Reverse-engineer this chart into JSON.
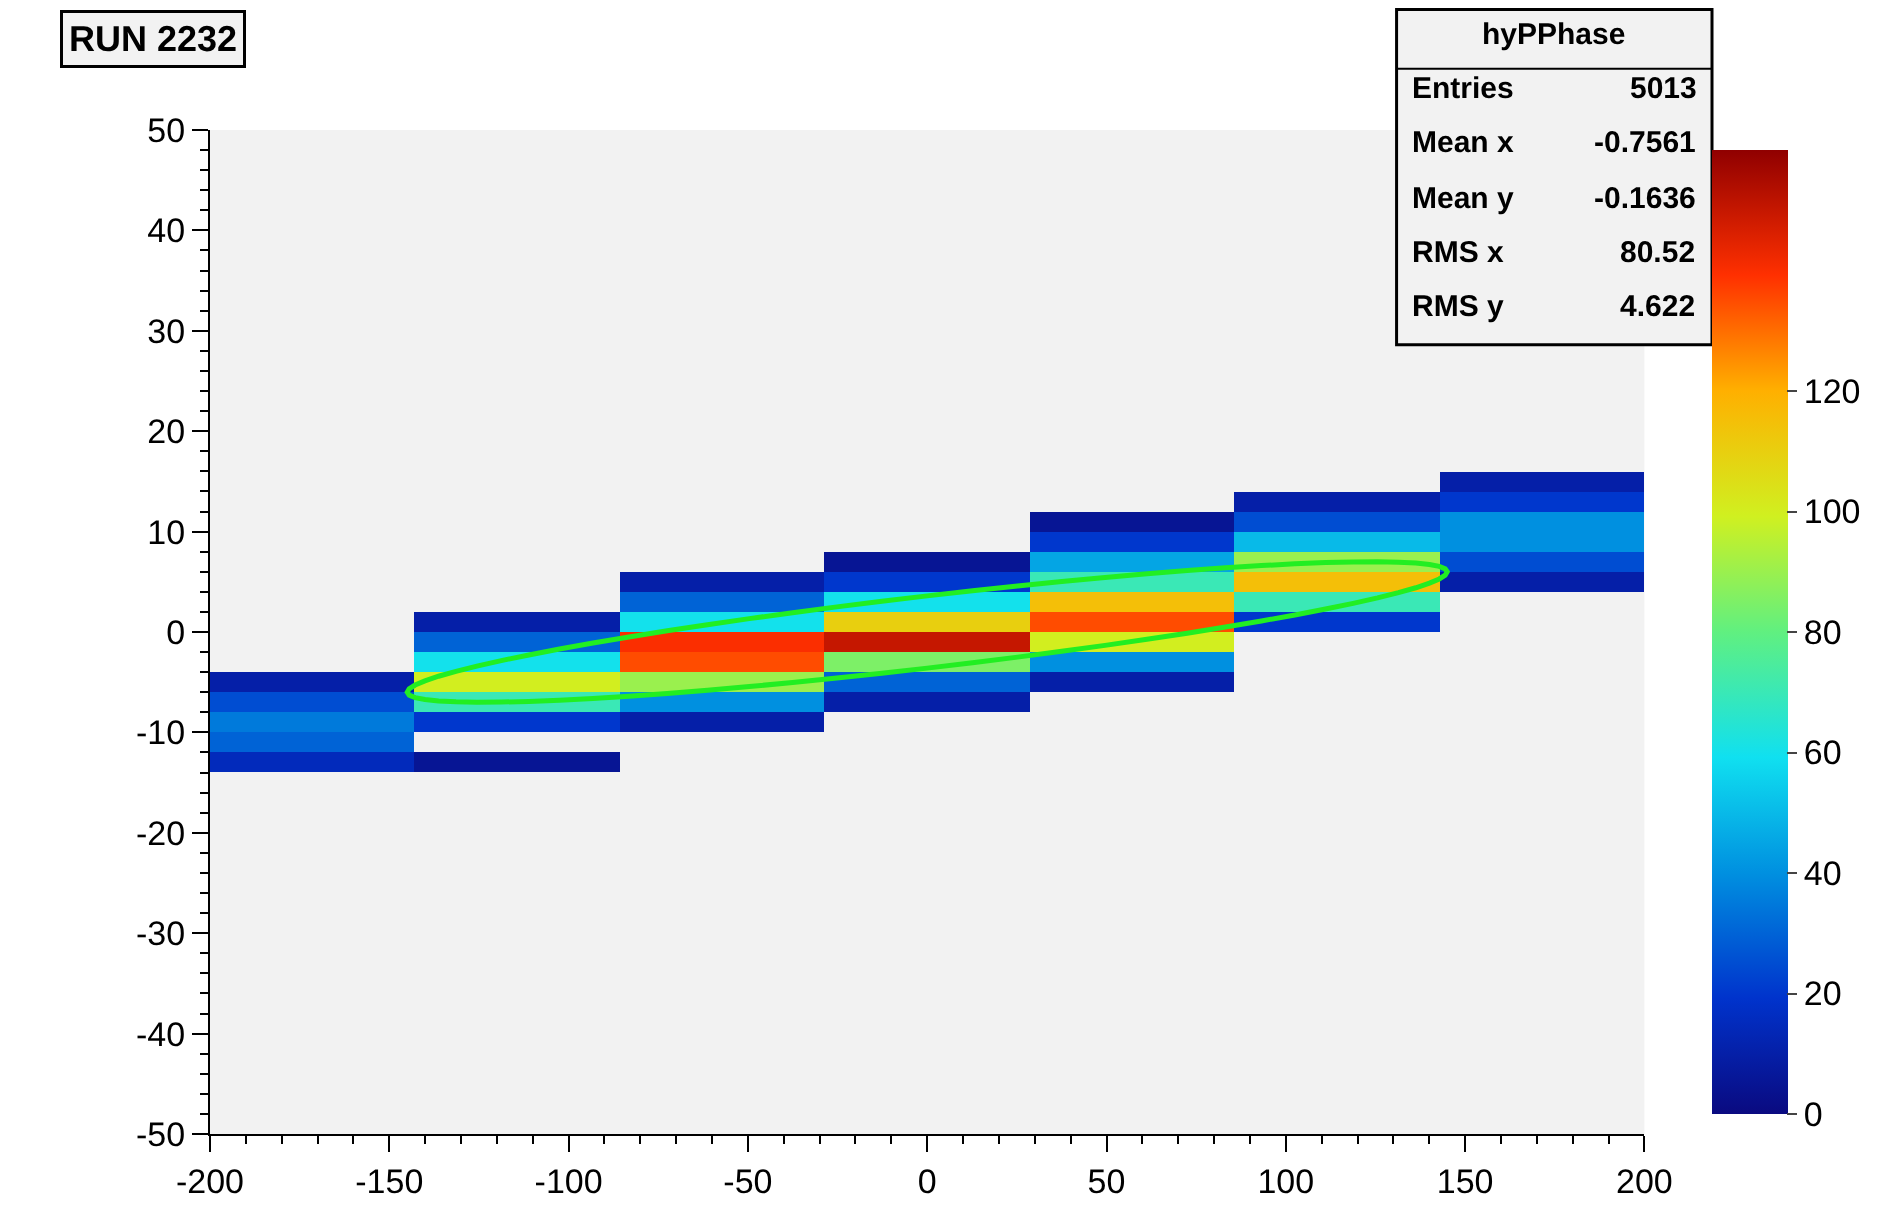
{
  "chart_data": {
    "type": "heatmap",
    "title": "RUN 2232",
    "x": [
      -171.43,
      -114.29,
      -57.14,
      0,
      57.14,
      114.29,
      171.43
    ],
    "y": [
      15,
      13,
      11,
      9,
      7,
      5,
      3,
      1,
      -1,
      -3,
      -5,
      -7,
      -9,
      -11,
      -13
    ],
    "cells": [
      [
        null,
        null,
        null,
        null,
        null,
        null,
        10
      ],
      [
        null,
        null,
        null,
        null,
        null,
        10,
        20
      ],
      [
        null,
        null,
        null,
        null,
        5,
        25,
        40
      ],
      [
        null,
        null,
        null,
        null,
        20,
        50,
        40
      ],
      [
        null,
        null,
        null,
        5,
        45,
        90,
        25
      ],
      [
        null,
        null,
        10,
        20,
        70,
        115,
        10
      ],
      [
        null,
        null,
        30,
        60,
        115,
        70,
        null
      ],
      [
        null,
        10,
        60,
        110,
        135,
        20,
        null
      ],
      [
        null,
        30,
        140,
        150,
        100,
        null,
        null
      ],
      [
        null,
        60,
        135,
        85,
        40,
        null,
        null
      ],
      [
        10,
        100,
        90,
        30,
        10,
        null,
        null
      ],
      [
        25,
        70,
        40,
        10,
        null,
        null,
        null
      ],
      [
        35,
        20,
        10,
        null,
        null,
        null,
        null
      ],
      [
        30,
        null,
        null,
        null,
        null,
        null,
        null
      ],
      [
        15,
        5,
        null,
        null,
        null,
        null,
        null
      ]
    ],
    "clim": [
      0,
      160
    ],
    "cticks": [
      0,
      20,
      40,
      60,
      80,
      100,
      120
    ],
    "xlim": [
      -200,
      200
    ],
    "xticks": [
      -200,
      -150,
      -100,
      -50,
      0,
      50,
      100,
      150,
      200
    ],
    "ylim": [
      -50,
      50
    ],
    "yticks": [
      -50,
      -40,
      -30,
      -20,
      -10,
      0,
      10,
      20,
      30,
      40,
      50
    ],
    "annotations": [
      "hyPPhase",
      "Entries 5013",
      "Mean x -0.7561",
      "Mean y -0.1636",
      "RMS x 80.52",
      "RMS y 4.622"
    ],
    "grid": false
  }
}
